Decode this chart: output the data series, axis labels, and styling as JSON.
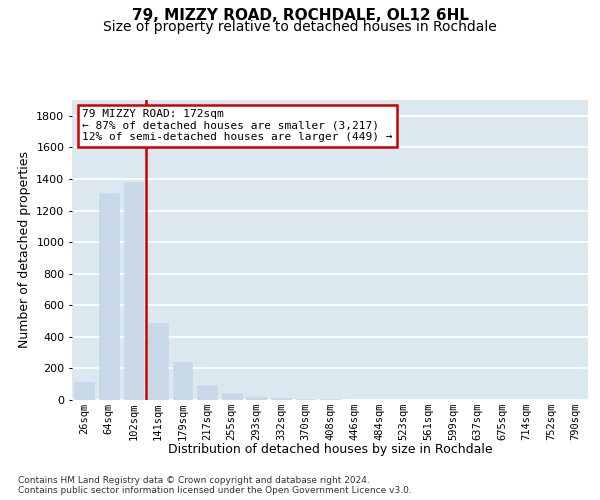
{
  "title": "79, MIZZY ROAD, ROCHDALE, OL12 6HL",
  "subtitle": "Size of property relative to detached houses in Rochdale",
  "xlabel": "Distribution of detached houses by size in Rochdale",
  "ylabel": "Number of detached properties",
  "categories": [
    "26sqm",
    "64sqm",
    "102sqm",
    "141sqm",
    "179sqm",
    "217sqm",
    "255sqm",
    "293sqm",
    "332sqm",
    "370sqm",
    "408sqm",
    "446sqm",
    "484sqm",
    "523sqm",
    "561sqm",
    "599sqm",
    "637sqm",
    "675sqm",
    "714sqm",
    "752sqm",
    "790sqm"
  ],
  "values": [
    113,
    1308,
    1378,
    486,
    238,
    93,
    43,
    21,
    12,
    7,
    4,
    3,
    3,
    2,
    1,
    1,
    1,
    1,
    1,
    1,
    1
  ],
  "bar_color": "#c8d8e8",
  "vline_x": 2.5,
  "vline_color": "#cc0000",
  "annotation_text": "79 MIZZY ROAD: 172sqm\n← 87% of detached houses are smaller (3,217)\n12% of semi-detached houses are larger (449) →",
  "annotation_box_color": "#cc0000",
  "footnote": "Contains HM Land Registry data © Crown copyright and database right 2024.\nContains public sector information licensed under the Open Government Licence v3.0.",
  "ylim": [
    0,
    1900
  ],
  "yticks": [
    0,
    200,
    400,
    600,
    800,
    1000,
    1200,
    1400,
    1600,
    1800
  ],
  "bg_color": "#dce8f0",
  "grid_color": "#ffffff",
  "title_fontsize": 11,
  "subtitle_fontsize": 10,
  "axis_fontsize": 9
}
